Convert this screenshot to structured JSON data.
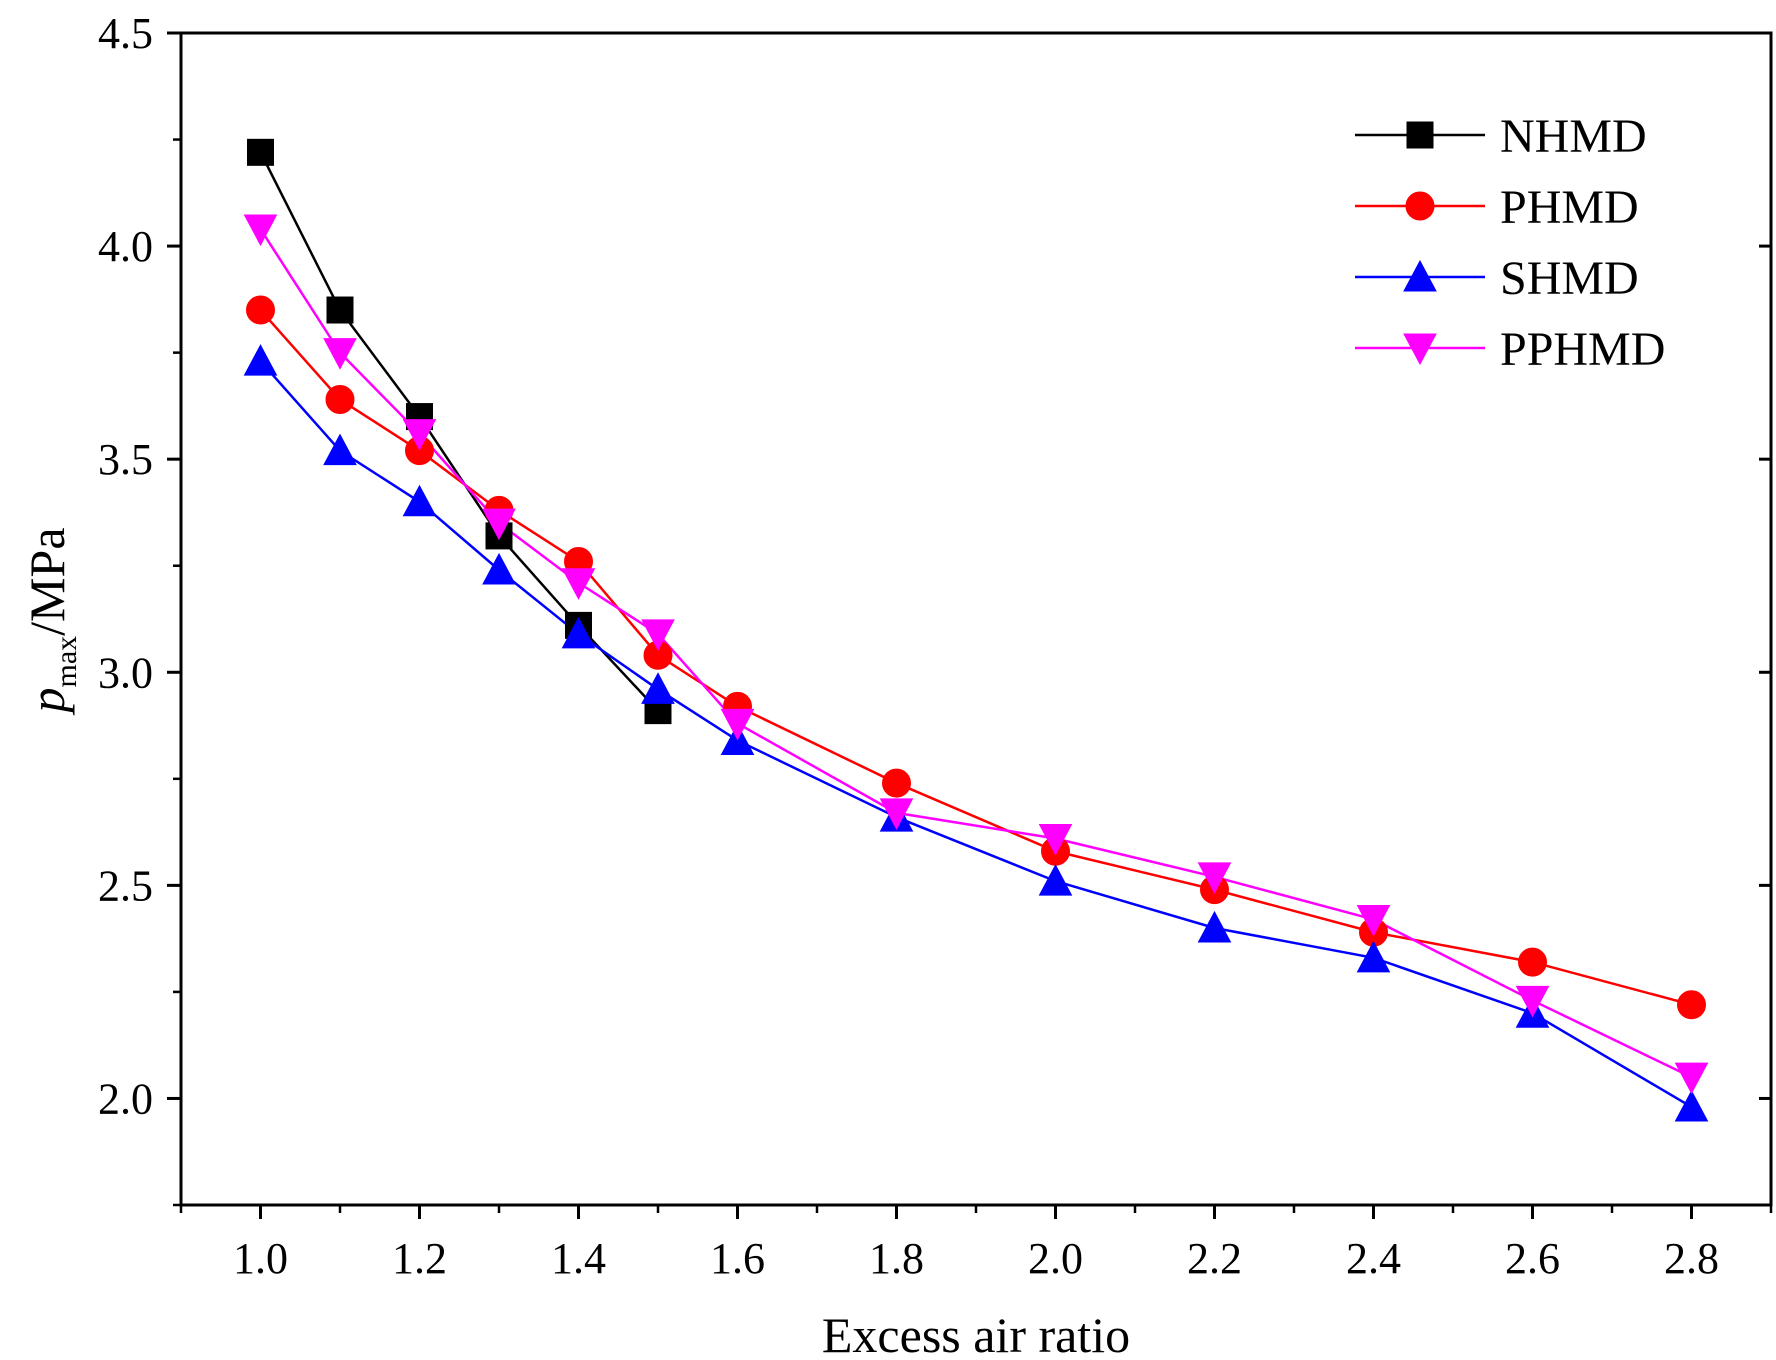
{
  "chart_data": {
    "type": "line",
    "title": "",
    "xlabel": "Excess air ratio",
    "ylabel": {
      "symbol": "p",
      "subscript": "max",
      "unit": "/MPa"
    },
    "xlim": [
      0.9,
      2.9
    ],
    "ylim": [
      1.75,
      4.5
    ],
    "xticks": [
      "1.0",
      "1.2",
      "1.4",
      "1.6",
      "1.8",
      "2.0",
      "2.2",
      "2.4",
      "2.6",
      "2.8"
    ],
    "yticks": [
      "2.0",
      "2.5",
      "3.0",
      "3.5",
      "4.0",
      "4.5"
    ],
    "grid": false,
    "legend_position": "top-right",
    "series": [
      {
        "name": "NHMD",
        "color": "#000000",
        "marker": "square",
        "x": [
          1.0,
          1.1,
          1.2,
          1.3,
          1.4,
          1.5
        ],
        "values": [
          4.22,
          3.85,
          3.6,
          3.32,
          3.11,
          2.91
        ]
      },
      {
        "name": "PHMD",
        "color": "#ff0000",
        "marker": "circle",
        "x": [
          1.0,
          1.1,
          1.2,
          1.3,
          1.4,
          1.5,
          1.6,
          1.8,
          2.0,
          2.2,
          2.4,
          2.6,
          2.8
        ],
        "values": [
          3.85,
          3.64,
          3.52,
          3.38,
          3.26,
          3.04,
          2.92,
          2.74,
          2.58,
          2.49,
          2.39,
          2.32,
          2.22
        ]
      },
      {
        "name": "SHMD",
        "color": "#0000ff",
        "marker": "triangle-up",
        "x": [
          1.0,
          1.1,
          1.2,
          1.3,
          1.4,
          1.5,
          1.6,
          1.8,
          2.0,
          2.2,
          2.4,
          2.6,
          2.8
        ],
        "values": [
          3.73,
          3.52,
          3.4,
          3.24,
          3.09,
          2.96,
          2.84,
          2.66,
          2.51,
          2.4,
          2.33,
          2.2,
          1.98
        ]
      },
      {
        "name": "PPHMD",
        "color": "#ff00ff",
        "marker": "triangle-down",
        "x": [
          1.0,
          1.1,
          1.2,
          1.3,
          1.4,
          1.5,
          1.6,
          1.8,
          2.0,
          2.2,
          2.4,
          2.6,
          2.8
        ],
        "values": [
          4.04,
          3.75,
          3.56,
          3.35,
          3.21,
          3.09,
          2.88,
          2.67,
          2.61,
          2.52,
          2.42,
          2.23,
          2.05
        ]
      }
    ]
  }
}
